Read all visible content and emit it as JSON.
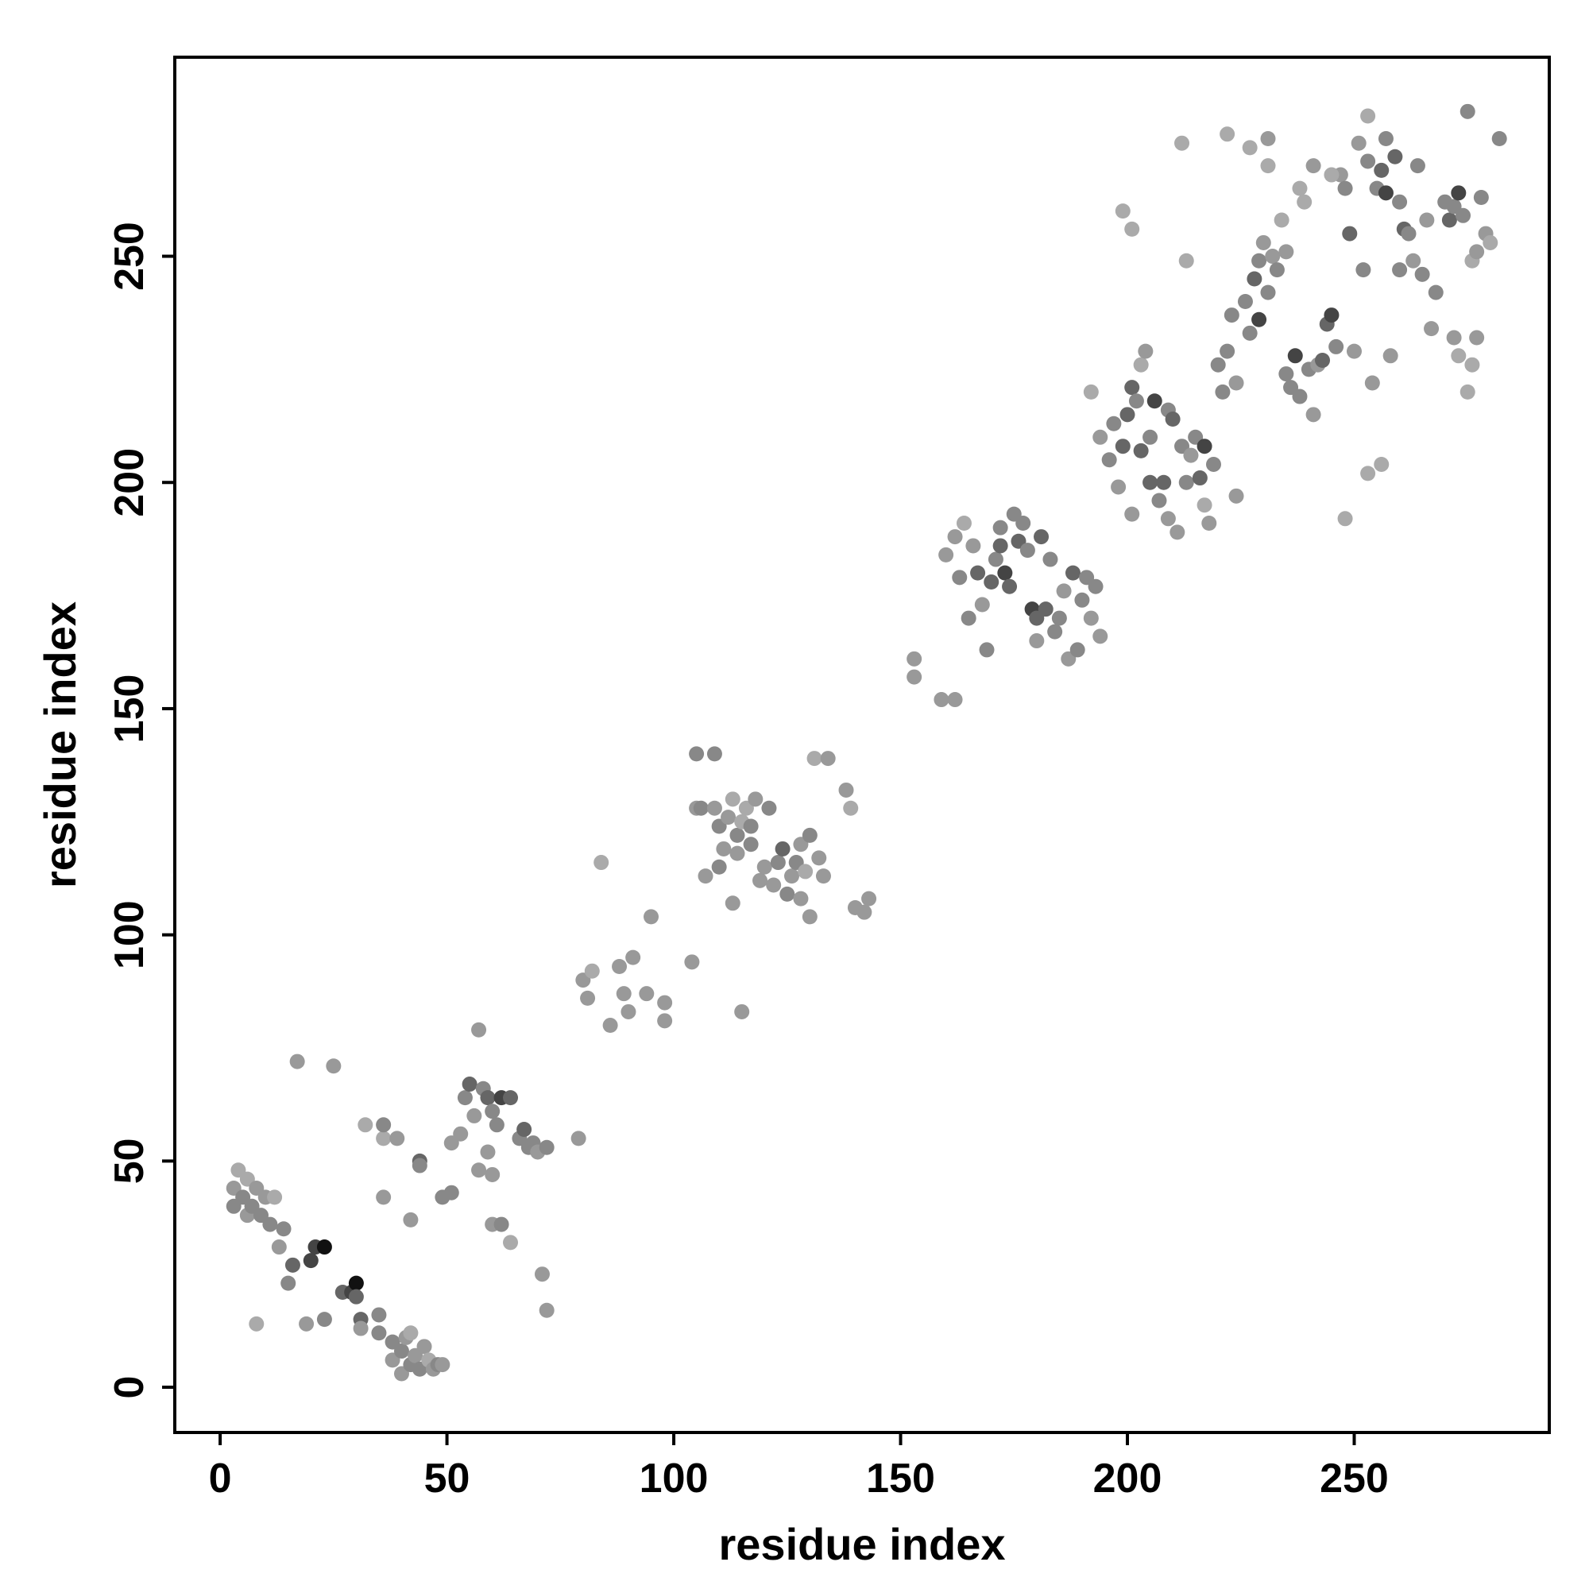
{
  "chart_data": {
    "type": "scatter",
    "title": "",
    "xlabel": "residue index",
    "ylabel": "residue index",
    "xlim": [
      -10,
      293
    ],
    "ylim": [
      -10,
      294
    ],
    "xticks": [
      0,
      50,
      100,
      150,
      200,
      250
    ],
    "yticks": [
      0,
      50,
      100,
      150,
      200,
      250
    ],
    "grid": false,
    "legend": "none",
    "marker_colors": [
      "#111111",
      "#444444",
      "#666666",
      "#888888",
      "#999999",
      "#aaaaaa"
    ],
    "points": [
      [
        3,
        40,
        3
      ],
      [
        3,
        44,
        4
      ],
      [
        4,
        48,
        5
      ],
      [
        5,
        42,
        3
      ],
      [
        6,
        38,
        4
      ],
      [
        6,
        46,
        5
      ],
      [
        7,
        40,
        3
      ],
      [
        8,
        44,
        4
      ],
      [
        9,
        38,
        3
      ],
      [
        10,
        42,
        4
      ],
      [
        11,
        36,
        3
      ],
      [
        12,
        42,
        5
      ],
      [
        8,
        14,
        5
      ],
      [
        13,
        31,
        4
      ],
      [
        14,
        35,
        3
      ],
      [
        15,
        23,
        3
      ],
      [
        16,
        27,
        2
      ],
      [
        17,
        72,
        4
      ],
      [
        19,
        14,
        4
      ],
      [
        20,
        28,
        1
      ],
      [
        21,
        31,
        1
      ],
      [
        23,
        31,
        0
      ],
      [
        23,
        15,
        3
      ],
      [
        25,
        71,
        4
      ],
      [
        27,
        21,
        2
      ],
      [
        29,
        21,
        1
      ],
      [
        30,
        23,
        0
      ],
      [
        30,
        20,
        2
      ],
      [
        31,
        15,
        2
      ],
      [
        31,
        13,
        4
      ],
      [
        32,
        58,
        5
      ],
      [
        35,
        16,
        3
      ],
      [
        35,
        12,
        3
      ],
      [
        36,
        55,
        5
      ],
      [
        36,
        42,
        4
      ],
      [
        36,
        58,
        3
      ],
      [
        38,
        10,
        3
      ],
      [
        38,
        6,
        4
      ],
      [
        40,
        8,
        3
      ],
      [
        40,
        3,
        4
      ],
      [
        41,
        11,
        4
      ],
      [
        42,
        5,
        3
      ],
      [
        42,
        12,
        5
      ],
      [
        43,
        7,
        4
      ],
      [
        44,
        4,
        3
      ],
      [
        45,
        9,
        4
      ],
      [
        46,
        6,
        5
      ],
      [
        47,
        4,
        4
      ],
      [
        48,
        5,
        3
      ],
      [
        49,
        5,
        4
      ],
      [
        39,
        55,
        4
      ],
      [
        42,
        37,
        4
      ],
      [
        44,
        50,
        2
      ],
      [
        44,
        49,
        3
      ],
      [
        49,
        42,
        3
      ],
      [
        51,
        54,
        4
      ],
      [
        51,
        43,
        3
      ],
      [
        53,
        56,
        4
      ],
      [
        54,
        64,
        3
      ],
      [
        55,
        67,
        2
      ],
      [
        56,
        60,
        4
      ],
      [
        57,
        48,
        4
      ],
      [
        58,
        66,
        3
      ],
      [
        59,
        64,
        2
      ],
      [
        59,
        52,
        4
      ],
      [
        60,
        61,
        3
      ],
      [
        60,
        36,
        4
      ],
      [
        60,
        47,
        4
      ],
      [
        61,
        58,
        3
      ],
      [
        62,
        64,
        1
      ],
      [
        62,
        36,
        3
      ],
      [
        64,
        32,
        5
      ],
      [
        64,
        64,
        2
      ],
      [
        66,
        55,
        3
      ],
      [
        67,
        57,
        2
      ],
      [
        68,
        53,
        3
      ],
      [
        69,
        54,
        3
      ],
      [
        70,
        52,
        4
      ],
      [
        72,
        53,
        3
      ],
      [
        57,
        79,
        4
      ],
      [
        71,
        25,
        4
      ],
      [
        72,
        17,
        4
      ],
      [
        79,
        55,
        4
      ],
      [
        80,
        90,
        4
      ],
      [
        81,
        86,
        4
      ],
      [
        82,
        92,
        5
      ],
      [
        84,
        116,
        5
      ],
      [
        86,
        80,
        4
      ],
      [
        88,
        93,
        4
      ],
      [
        89,
        87,
        4
      ],
      [
        90,
        83,
        4
      ],
      [
        91,
        95,
        4
      ],
      [
        94,
        87,
        4
      ],
      [
        95,
        104,
        4
      ],
      [
        98,
        81,
        4
      ],
      [
        98,
        85,
        4
      ],
      [
        104,
        94,
        4
      ],
      [
        105,
        128,
        4
      ],
      [
        105,
        140,
        3
      ],
      [
        106,
        128,
        3
      ],
      [
        107,
        113,
        4
      ],
      [
        109,
        140,
        3
      ],
      [
        109,
        128,
        4
      ],
      [
        110,
        124,
        3
      ],
      [
        110,
        115,
        3
      ],
      [
        111,
        119,
        4
      ],
      [
        112,
        126,
        4
      ],
      [
        113,
        130,
        5
      ],
      [
        113,
        107,
        4
      ],
      [
        114,
        122,
        3
      ],
      [
        114,
        118,
        4
      ],
      [
        115,
        125,
        5
      ],
      [
        115,
        83,
        4
      ],
      [
        116,
        128,
        5
      ],
      [
        117,
        124,
        3
      ],
      [
        117,
        120,
        3
      ],
      [
        118,
        130,
        4
      ],
      [
        119,
        112,
        4
      ],
      [
        120,
        115,
        4
      ],
      [
        121,
        128,
        3
      ],
      [
        122,
        111,
        4
      ],
      [
        123,
        116,
        3
      ],
      [
        124,
        119,
        2
      ],
      [
        125,
        109,
        3
      ],
      [
        126,
        113,
        4
      ],
      [
        127,
        116,
        3
      ],
      [
        128,
        120,
        4
      ],
      [
        128,
        108,
        4
      ],
      [
        129,
        114,
        5
      ],
      [
        130,
        122,
        3
      ],
      [
        130,
        104,
        4
      ],
      [
        131,
        139,
        5
      ],
      [
        132,
        117,
        4
      ],
      [
        133,
        113,
        4
      ],
      [
        134,
        139,
        4
      ],
      [
        138,
        132,
        4
      ],
      [
        139,
        128,
        5
      ],
      [
        140,
        106,
        4
      ],
      [
        142,
        105,
        4
      ],
      [
        143,
        108,
        4
      ],
      [
        153,
        161,
        4
      ],
      [
        153,
        157,
        4
      ],
      [
        159,
        152,
        4
      ],
      [
        162,
        152,
        4
      ],
      [
        160,
        184,
        4
      ],
      [
        162,
        188,
        4
      ],
      [
        163,
        179,
        3
      ],
      [
        164,
        191,
        5
      ],
      [
        165,
        170,
        3
      ],
      [
        166,
        186,
        4
      ],
      [
        167,
        180,
        2
      ],
      [
        168,
        173,
        4
      ],
      [
        169,
        163,
        3
      ],
      [
        170,
        178,
        2
      ],
      [
        171,
        183,
        3
      ],
      [
        172,
        190,
        3
      ],
      [
        172,
        186,
        2
      ],
      [
        173,
        180,
        1
      ],
      [
        174,
        177,
        2
      ],
      [
        175,
        193,
        3
      ],
      [
        176,
        187,
        2
      ],
      [
        177,
        191,
        3
      ],
      [
        178,
        185,
        3
      ],
      [
        179,
        172,
        1
      ],
      [
        180,
        170,
        2
      ],
      [
        180,
        165,
        4
      ],
      [
        181,
        188,
        2
      ],
      [
        182,
        172,
        2
      ],
      [
        183,
        183,
        3
      ],
      [
        184,
        167,
        3
      ],
      [
        185,
        170,
        3
      ],
      [
        186,
        176,
        4
      ],
      [
        187,
        161,
        4
      ],
      [
        188,
        180,
        2
      ],
      [
        189,
        163,
        3
      ],
      [
        190,
        174,
        3
      ],
      [
        191,
        179,
        3
      ],
      [
        192,
        170,
        4
      ],
      [
        193,
        177,
        3
      ],
      [
        194,
        166,
        4
      ],
      [
        192,
        220,
        5
      ],
      [
        194,
        210,
        4
      ],
      [
        196,
        205,
        3
      ],
      [
        197,
        213,
        3
      ],
      [
        198,
        199,
        4
      ],
      [
        199,
        208,
        2
      ],
      [
        200,
        215,
        2
      ],
      [
        201,
        221,
        2
      ],
      [
        201,
        193,
        4
      ],
      [
        202,
        218,
        3
      ],
      [
        203,
        207,
        2
      ],
      [
        203,
        226,
        5
      ],
      [
        204,
        229,
        4
      ],
      [
        205,
        200,
        2
      ],
      [
        205,
        210,
        3
      ],
      [
        206,
        218,
        1
      ],
      [
        207,
        196,
        3
      ],
      [
        208,
        200,
        2
      ],
      [
        209,
        192,
        4
      ],
      [
        209,
        216,
        3
      ],
      [
        210,
        214,
        2
      ],
      [
        211,
        189,
        4
      ],
      [
        212,
        208,
        3
      ],
      [
        213,
        200,
        3
      ],
      [
        214,
        206,
        4
      ],
      [
        215,
        210,
        3
      ],
      [
        216,
        201,
        2
      ],
      [
        217,
        208,
        1
      ],
      [
        217,
        195,
        5
      ],
      [
        218,
        191,
        4
      ],
      [
        219,
        204,
        3
      ],
      [
        220,
        226,
        3
      ],
      [
        221,
        220,
        3
      ],
      [
        222,
        229,
        3
      ],
      [
        223,
        237,
        3
      ],
      [
        224,
        222,
        4
      ],
      [
        224,
        197,
        4
      ],
      [
        226,
        240,
        3
      ],
      [
        227,
        233,
        3
      ],
      [
        228,
        245,
        2
      ],
      [
        229,
        236,
        1
      ],
      [
        229,
        249,
        3
      ],
      [
        230,
        253,
        4
      ],
      [
        231,
        242,
        3
      ],
      [
        232,
        250,
        4
      ],
      [
        233,
        247,
        3
      ],
      [
        234,
        258,
        5
      ],
      [
        235,
        251,
        4
      ],
      [
        235,
        224,
        3
      ],
      [
        236,
        221,
        3
      ],
      [
        237,
        228,
        1
      ],
      [
        238,
        219,
        3
      ],
      [
        239,
        262,
        5
      ],
      [
        240,
        225,
        3
      ],
      [
        241,
        215,
        4
      ],
      [
        242,
        226,
        4
      ],
      [
        243,
        227,
        2
      ],
      [
        244,
        235,
        2
      ],
      [
        245,
        237,
        1
      ],
      [
        246,
        230,
        3
      ],
      [
        247,
        268,
        4
      ],
      [
        248,
        265,
        3
      ],
      [
        249,
        255,
        2
      ],
      [
        250,
        229,
        4
      ],
      [
        251,
        275,
        4
      ],
      [
        252,
        247,
        3
      ],
      [
        253,
        271,
        3
      ],
      [
        254,
        222,
        4
      ],
      [
        255,
        265,
        3
      ],
      [
        256,
        269,
        2
      ],
      [
        257,
        264,
        1
      ],
      [
        257,
        276,
        3
      ],
      [
        258,
        228,
        4
      ],
      [
        259,
        272,
        2
      ],
      [
        260,
        262,
        3
      ],
      [
        260,
        247,
        3
      ],
      [
        261,
        256,
        2
      ],
      [
        262,
        255,
        3
      ],
      [
        263,
        249,
        4
      ],
      [
        264,
        270,
        3
      ],
      [
        265,
        246,
        3
      ],
      [
        266,
        258,
        4
      ],
      [
        267,
        234,
        4
      ],
      [
        268,
        242,
        3
      ],
      [
        270,
        262,
        3
      ],
      [
        271,
        258,
        2
      ],
      [
        272,
        261,
        3
      ],
      [
        273,
        264,
        1
      ],
      [
        274,
        259,
        3
      ],
      [
        275,
        282,
        3
      ],
      [
        276,
        249,
        5
      ],
      [
        277,
        251,
        4
      ],
      [
        278,
        263,
        3
      ],
      [
        279,
        255,
        4
      ],
      [
        280,
        253,
        5
      ],
      [
        282,
        276,
        3
      ],
      [
        275,
        220,
        5
      ],
      [
        276,
        226,
        5
      ],
      [
        277,
        232,
        4
      ],
      [
        272,
        232,
        4
      ],
      [
        273,
        228,
        5
      ],
      [
        248,
        192,
        5
      ],
      [
        253,
        202,
        5
      ],
      [
        256,
        204,
        5
      ],
      [
        199,
        260,
        5
      ],
      [
        201,
        256,
        5
      ],
      [
        213,
        249,
        5
      ],
      [
        212,
        275,
        5
      ],
      [
        222,
        277,
        5
      ],
      [
        227,
        274,
        5
      ],
      [
        231,
        276,
        4
      ],
      [
        231,
        270,
        5
      ],
      [
        253,
        281,
        5
      ],
      [
        245,
        268,
        5
      ],
      [
        238,
        265,
        5
      ],
      [
        241,
        270,
        4
      ]
    ]
  }
}
